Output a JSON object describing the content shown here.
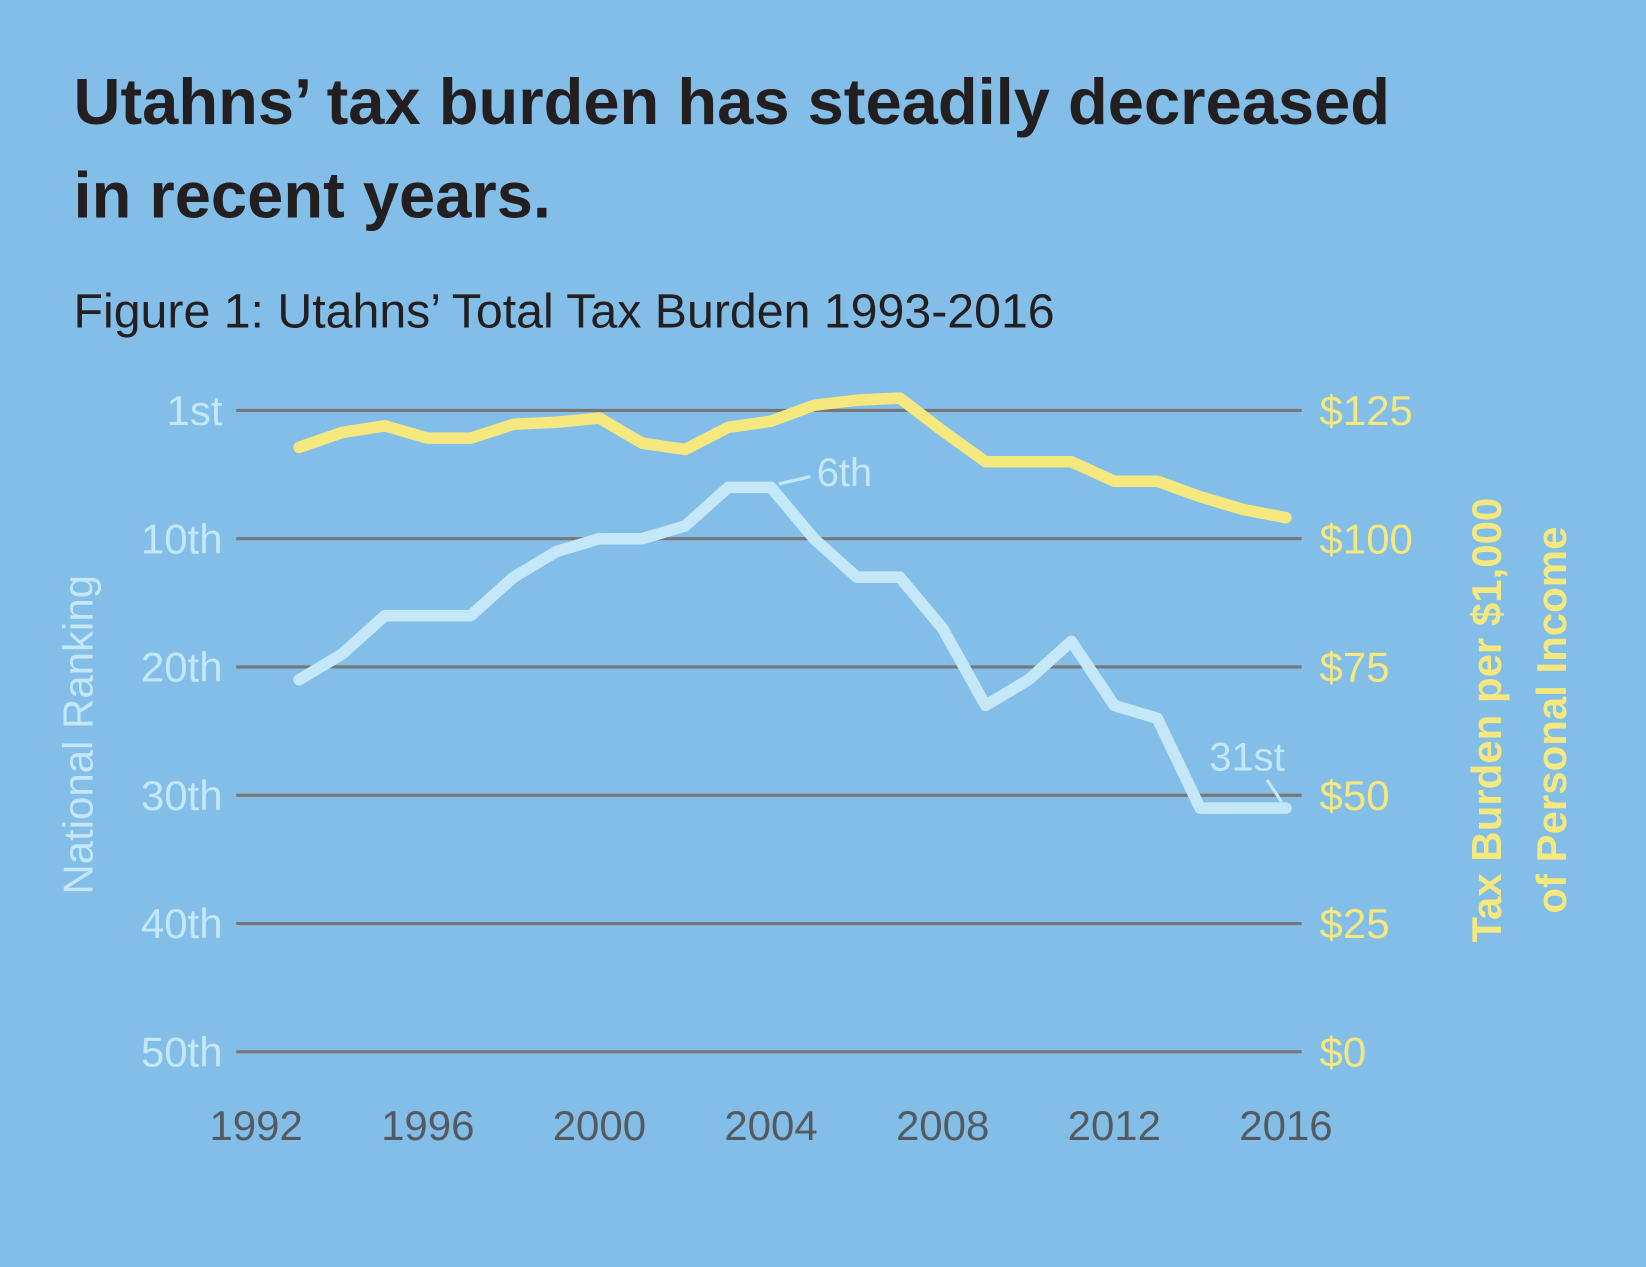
{
  "title_line1": "Utahns’ tax burden has steadily decreased",
  "title_line2": "in recent years.",
  "chart_data": {
    "type": "line",
    "title": "Figure 1: Utahns’ Total Tax Burden 1993-2016",
    "x": [
      1993,
      1994,
      1995,
      1996,
      1997,
      1998,
      1999,
      2000,
      2001,
      2002,
      2003,
      2004,
      2005,
      2006,
      2007,
      2008,
      2009,
      2010,
      2011,
      2012,
      2013,
      2014,
      2015,
      2016
    ],
    "series": [
      {
        "axis": "left",
        "color": "#c5e8f8",
        "values": [
          21,
          19,
          16,
          16,
          16,
          13,
          11,
          10,
          10,
          9,
          6,
          6,
          10,
          13,
          13,
          17,
          23,
          21,
          18,
          23,
          24,
          31,
          31,
          31
        ]
      },
      {
        "axis": "right",
        "color": "#f5e87e",
        "values": [
          117.8,
          120.7,
          122,
          119.6,
          119.6,
          122.3,
          122.7,
          123.5,
          118.6,
          117.4,
          121.7,
          122.9,
          126,
          127,
          127.4,
          121,
          115,
          115,
          115,
          111.2,
          111.2,
          108.2,
          105.7,
          104.1
        ]
      }
    ],
    "ylabel_left": "National Ranking",
    "ylabel_right_line1": "Tax Burden per $1,000",
    "ylabel_right_line2": "of Personal Income",
    "yticks_left": [
      "1st",
      "10th",
      "20th",
      "30th",
      "40th",
      "50th"
    ],
    "yticks_left_values": [
      0,
      10,
      20,
      30,
      40,
      50
    ],
    "yticks_right": [
      "$125",
      "$100",
      "$75",
      "$50",
      "$25",
      "$0"
    ],
    "yticks_right_values": [
      125,
      100,
      75,
      50,
      25,
      0
    ],
    "xticks": [
      "1992",
      "1996",
      "2000",
      "2004",
      "2008",
      "2012",
      "2016"
    ],
    "xticks_values": [
      1992,
      1996,
      2000,
      2004,
      2008,
      2012,
      2016
    ],
    "ylim_left": [
      0,
      50
    ],
    "ylim_right": [
      0,
      125
    ],
    "xlim": [
      1992,
      2016
    ],
    "grid": true,
    "annotations": [
      {
        "text": "6th",
        "x": 2004,
        "series": 0
      },
      {
        "text": "31st",
        "x": 2016,
        "series": 0
      }
    ]
  },
  "colors": {
    "background": "#82bee8",
    "ranking": "#c5e8f8",
    "burden": "#f5e87e",
    "grid": "#777777"
  }
}
